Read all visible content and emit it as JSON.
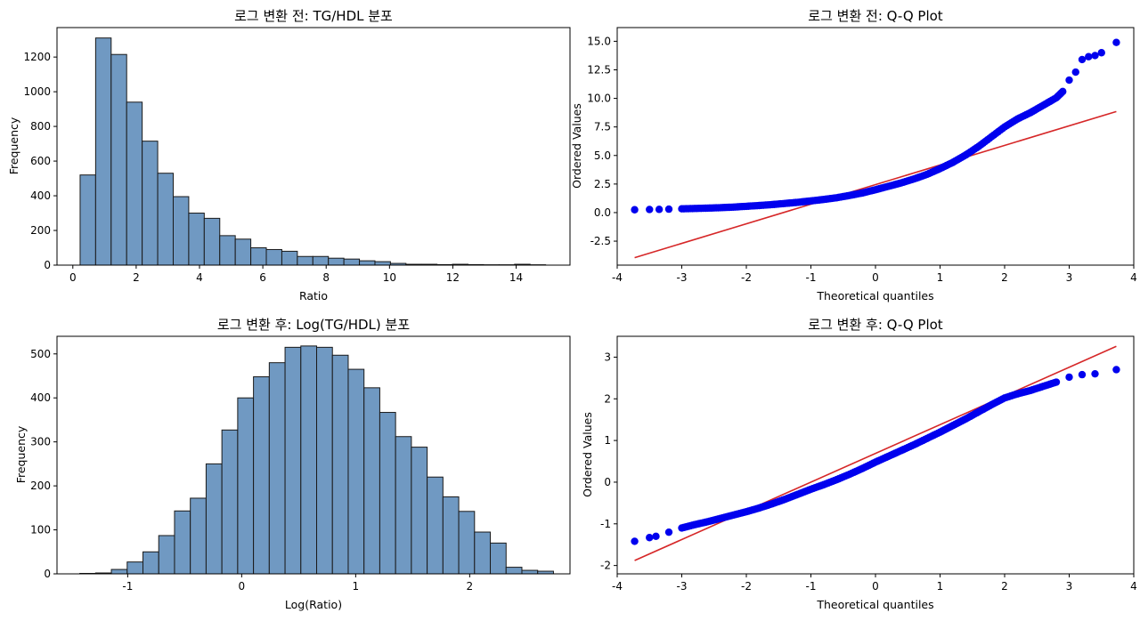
{
  "chart_data": [
    {
      "type": "bar",
      "id": "hist-before",
      "title": "로그 변환 전: TG/HDL 분포",
      "xlabel": "Ratio",
      "ylabel": "Frequency",
      "xlim": [
        -0.5,
        15.7
      ],
      "ylim": [
        0,
        1370
      ],
      "xticks": [
        0,
        2,
        4,
        6,
        8,
        10,
        12,
        14
      ],
      "yticks": [
        0,
        200,
        400,
        600,
        800,
        1000,
        1200
      ],
      "bin_start": 0.23,
      "bin_width": 0.49,
      "values": [
        520,
        1310,
        1215,
        940,
        715,
        530,
        395,
        300,
        270,
        170,
        150,
        100,
        90,
        80,
        50,
        50,
        40,
        35,
        25,
        20,
        10,
        5,
        5,
        3,
        5,
        3,
        2,
        2,
        5,
        2
      ]
    },
    {
      "type": "scatter",
      "id": "qq-before",
      "title": "로그 변환 전: Q-Q Plot",
      "xlabel": "Theoretical quantiles",
      "ylabel": "Ordered Values",
      "xlim": [
        -4.0,
        4.0
      ],
      "ylim": [
        -4.6,
        16.2
      ],
      "xticks": [
        -4,
        -3,
        -2,
        -1,
        0,
        1,
        2,
        3,
        4
      ],
      "yticks": [
        -2.5,
        0.0,
        2.5,
        5.0,
        7.5,
        10.0,
        12.5,
        15.0
      ],
      "ytick_labels": [
        "-2.5",
        "0.0",
        "2.5",
        "5.0",
        "7.5",
        "10.0",
        "12.5",
        "15.0"
      ],
      "points": [
        [
          -3.73,
          0.25
        ],
        [
          -3.5,
          0.27
        ],
        [
          -3.35,
          0.28
        ],
        [
          -3.2,
          0.3
        ],
        [
          -3.0,
          0.33
        ],
        [
          -2.8,
          0.36
        ],
        [
          -2.6,
          0.39
        ],
        [
          -2.4,
          0.43
        ],
        [
          -2.2,
          0.48
        ],
        [
          -2.0,
          0.55
        ],
        [
          -1.8,
          0.62
        ],
        [
          -1.6,
          0.7
        ],
        [
          -1.4,
          0.8
        ],
        [
          -1.2,
          0.9
        ],
        [
          -1.0,
          1.02
        ],
        [
          -0.8,
          1.15
        ],
        [
          -0.6,
          1.3
        ],
        [
          -0.4,
          1.5
        ],
        [
          -0.2,
          1.72
        ],
        [
          0.0,
          2.0
        ],
        [
          0.2,
          2.3
        ],
        [
          0.4,
          2.6
        ],
        [
          0.6,
          2.95
        ],
        [
          0.8,
          3.35
        ],
        [
          1.0,
          3.85
        ],
        [
          1.2,
          4.4
        ],
        [
          1.4,
          5.05
        ],
        [
          1.6,
          5.8
        ],
        [
          1.8,
          6.65
        ],
        [
          2.0,
          7.5
        ],
        [
          2.2,
          8.2
        ],
        [
          2.4,
          8.75
        ],
        [
          2.6,
          9.4
        ],
        [
          2.8,
          10.05
        ],
        [
          2.9,
          10.6
        ],
        [
          3.0,
          11.6
        ],
        [
          3.1,
          12.3
        ],
        [
          3.2,
          13.4
        ],
        [
          3.3,
          13.65
        ],
        [
          3.4,
          13.75
        ],
        [
          3.5,
          14.0
        ],
        [
          3.73,
          14.9
        ]
      ],
      "fit_line": [
        [
          -3.73,
          -3.95
        ],
        [
          3.73,
          8.85
        ]
      ]
    },
    {
      "type": "bar",
      "id": "hist-after",
      "title": "로그 변환 후: Log(TG/HDL) 분포",
      "xlabel": "Log(Ratio)",
      "ylabel": "Frequency",
      "xlim": [
        -1.62,
        2.88
      ],
      "ylim": [
        0,
        540
      ],
      "xticks": [
        -1,
        0,
        1,
        2
      ],
      "yticks": [
        0,
        100,
        200,
        300,
        400,
        500
      ],
      "bin_start": -1.42,
      "bin_width": 0.1385,
      "values": [
        1,
        2,
        10,
        27,
        50,
        87,
        143,
        172,
        250,
        327,
        400,
        448,
        480,
        515,
        518,
        515,
        497,
        465,
        423,
        367,
        312,
        288,
        220,
        175,
        142,
        95,
        70,
        15,
        8,
        6
      ]
    },
    {
      "type": "scatter",
      "id": "qq-after",
      "title": "로그 변환 후: Q-Q Plot",
      "xlabel": "Theoretical quantiles",
      "ylabel": "Ordered Values",
      "xlim": [
        -4.0,
        4.0
      ],
      "ylim": [
        -2.2,
        3.5
      ],
      "xticks": [
        -4,
        -3,
        -2,
        -1,
        0,
        1,
        2,
        3,
        4
      ],
      "yticks": [
        -2,
        -1,
        0,
        1,
        2,
        3
      ],
      "points": [
        [
          -3.73,
          -1.42
        ],
        [
          -3.5,
          -1.33
        ],
        [
          -3.4,
          -1.3
        ],
        [
          -3.2,
          -1.2
        ],
        [
          -3.0,
          -1.1
        ],
        [
          -2.8,
          -1.02
        ],
        [
          -2.6,
          -0.95
        ],
        [
          -2.4,
          -0.87
        ],
        [
          -2.2,
          -0.79
        ],
        [
          -2.0,
          -0.71
        ],
        [
          -1.8,
          -0.62
        ],
        [
          -1.6,
          -0.52
        ],
        [
          -1.4,
          -0.41
        ],
        [
          -1.2,
          -0.29
        ],
        [
          -1.0,
          -0.17
        ],
        [
          -0.8,
          -0.06
        ],
        [
          -0.6,
          0.06
        ],
        [
          -0.4,
          0.19
        ],
        [
          -0.2,
          0.33
        ],
        [
          0.0,
          0.48
        ],
        [
          0.2,
          0.62
        ],
        [
          0.4,
          0.76
        ],
        [
          0.6,
          0.9
        ],
        [
          0.8,
          1.05
        ],
        [
          1.0,
          1.2
        ],
        [
          1.2,
          1.36
        ],
        [
          1.4,
          1.52
        ],
        [
          1.6,
          1.69
        ],
        [
          1.8,
          1.86
        ],
        [
          2.0,
          2.02
        ],
        [
          2.2,
          2.12
        ],
        [
          2.4,
          2.2
        ],
        [
          2.6,
          2.3
        ],
        [
          2.8,
          2.4
        ],
        [
          3.0,
          2.52
        ],
        [
          3.2,
          2.58
        ],
        [
          3.4,
          2.6
        ],
        [
          3.73,
          2.7
        ]
      ],
      "fit_line": [
        [
          -3.73,
          -1.88
        ],
        [
          3.73,
          3.26
        ]
      ]
    }
  ]
}
